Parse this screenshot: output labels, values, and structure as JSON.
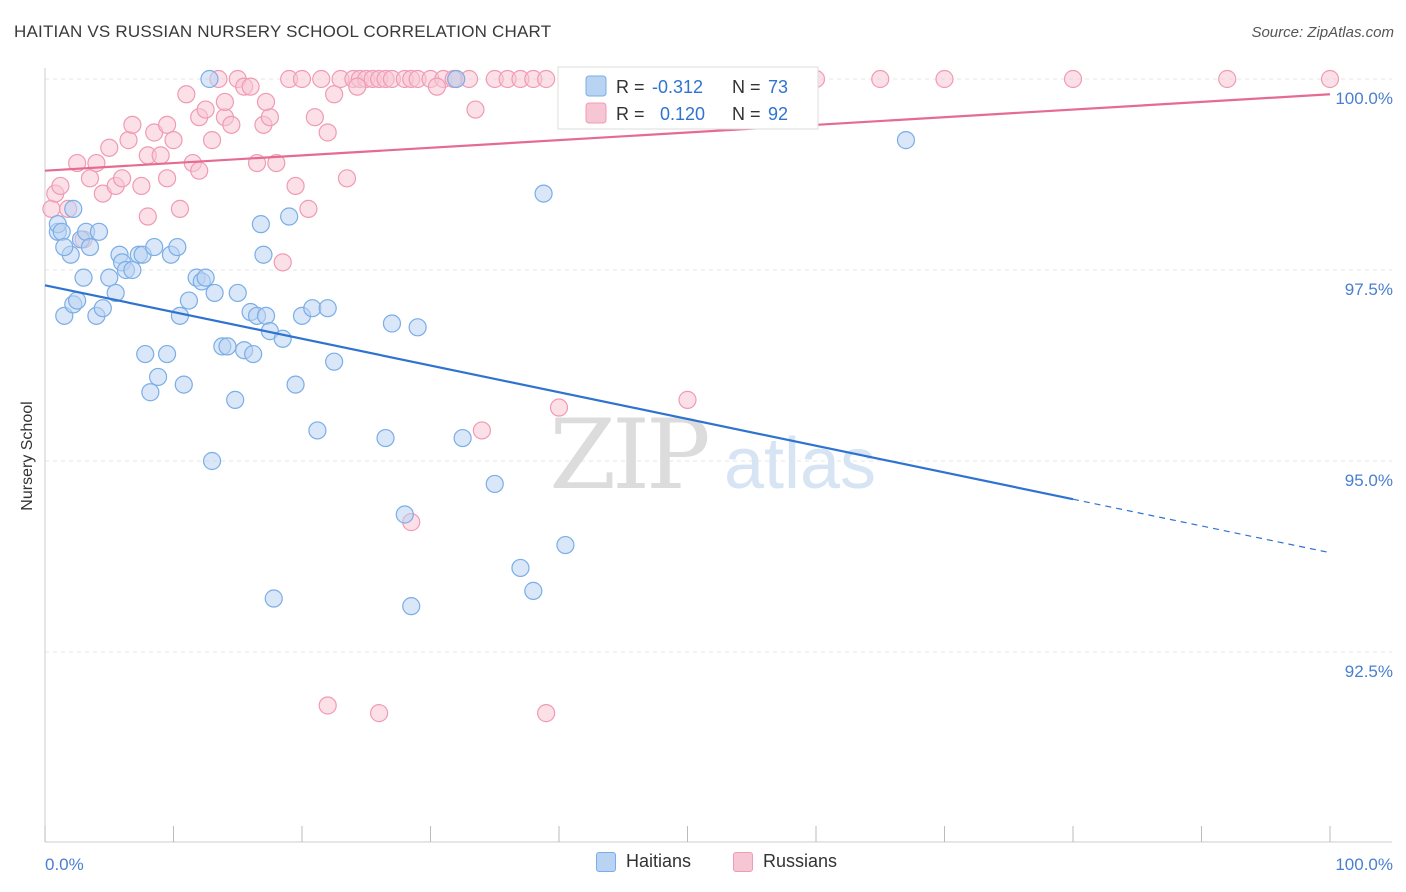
{
  "title": "HAITIAN VS RUSSIAN NURSERY SCHOOL CORRELATION CHART",
  "source": "Source: ZipAtlas.com",
  "watermark": {
    "zip": "ZIP",
    "atlas": "atlas"
  },
  "chart_data": {
    "type": "scatter",
    "ylabel": "Nursery School",
    "xlim": [
      0,
      100
    ],
    "ylim": [
      90.3,
      100.4
    ],
    "x_tick_labels": [
      "0.0%",
      "100.0%"
    ],
    "y_ticks": [
      92.5,
      95.0,
      97.5,
      100.0
    ],
    "y_tick_labels": [
      "92.5%",
      "95.0%",
      "97.5%",
      "100.0%"
    ],
    "legend": [
      {
        "r_label": "R =",
        "r_value": "-0.312",
        "n_label": "N =",
        "n_value": "73"
      },
      {
        "r_label": "R =",
        "r_value": "0.120",
        "n_label": "N =",
        "n_value": "92"
      }
    ],
    "series": [
      {
        "name": "Haitians",
        "color": "#7aaee6",
        "fill": "#b9d3f3",
        "line_color": "#2f73d0",
        "trend": {
          "x0": 0,
          "y0": 97.3,
          "x1": 80,
          "y1": 94.5,
          "dash_to_x": 100,
          "dash_to_y": 93.8
        },
        "points": [
          [
            1,
            98.0
          ],
          [
            1,
            98.1
          ],
          [
            1.3,
            98.0
          ],
          [
            1.5,
            96.9
          ],
          [
            2,
            97.7
          ],
          [
            2.2,
            97.05
          ],
          [
            2.5,
            97.1
          ],
          [
            2.8,
            97.9
          ],
          [
            3,
            97.4
          ],
          [
            3.2,
            98.0
          ],
          [
            3.5,
            97.8
          ],
          [
            4,
            96.9
          ],
          [
            4.5,
            97.0
          ],
          [
            5,
            97.4
          ],
          [
            5.5,
            97.2
          ],
          [
            5.8,
            97.7
          ],
          [
            6,
            97.6
          ],
          [
            6.3,
            97.5
          ],
          [
            6.8,
            97.5
          ],
          [
            7.3,
            97.7
          ],
          [
            7.6,
            97.7
          ],
          [
            7.8,
            96.4
          ],
          [
            8.2,
            95.9
          ],
          [
            8.5,
            97.8
          ],
          [
            8.8,
            96.1
          ],
          [
            9.5,
            96.4
          ],
          [
            9.8,
            97.7
          ],
          [
            10.3,
            97.8
          ],
          [
            10.5,
            96.9
          ],
          [
            10.8,
            96.0
          ],
          [
            11.2,
            97.1
          ],
          [
            11.8,
            97.4
          ],
          [
            12.2,
            97.35
          ],
          [
            12.5,
            97.4
          ],
          [
            13,
            95.0
          ],
          [
            13.2,
            97.2
          ],
          [
            13.8,
            96.5
          ],
          [
            14.2,
            96.5
          ],
          [
            14.8,
            95.8
          ],
          [
            15,
            97.2
          ],
          [
            15.5,
            96.45
          ],
          [
            16,
            96.95
          ],
          [
            16.2,
            96.4
          ],
          [
            16.5,
            96.9
          ],
          [
            16.8,
            98.1
          ],
          [
            17,
            97.7
          ],
          [
            17.2,
            96.9
          ],
          [
            17.5,
            96.7
          ],
          [
            17.8,
            93.2
          ],
          [
            18.5,
            96.6
          ],
          [
            19,
            98.2
          ],
          [
            19.5,
            96.0
          ],
          [
            20,
            96.9
          ],
          [
            20.8,
            97.0
          ],
          [
            21.2,
            95.4
          ],
          [
            22,
            97.0
          ],
          [
            22.5,
            96.3
          ],
          [
            26.5,
            95.3
          ],
          [
            27,
            96.8
          ],
          [
            28,
            94.3
          ],
          [
            28.5,
            93.1
          ],
          [
            29,
            96.75
          ],
          [
            32,
            100.0
          ],
          [
            32.5,
            95.3
          ],
          [
            35,
            94.7
          ],
          [
            37,
            93.6
          ],
          [
            38,
            93.3
          ],
          [
            38.8,
            98.5
          ],
          [
            40.5,
            93.9
          ],
          [
            12.8,
            100.0
          ],
          [
            67,
            99.2
          ],
          [
            1.5,
            97.8
          ],
          [
            2.2,
            98.3
          ],
          [
            4.2,
            98.0
          ]
        ]
      },
      {
        "name": "Russians",
        "color": "#f09ab3",
        "fill": "#f7c6d5",
        "line_color": "#e56b91",
        "trend": {
          "x0": 0,
          "y0": 98.8,
          "x1": 100,
          "y1": 99.8
        },
        "points": [
          [
            0.5,
            98.3
          ],
          [
            0.8,
            98.5
          ],
          [
            1.2,
            98.6
          ],
          [
            1.8,
            98.3
          ],
          [
            2.5,
            98.9
          ],
          [
            3.5,
            98.7
          ],
          [
            4,
            98.9
          ],
          [
            4.5,
            98.5
          ],
          [
            5,
            99.1
          ],
          [
            5.5,
            98.6
          ],
          [
            6,
            98.7
          ],
          [
            6.5,
            99.2
          ],
          [
            6.8,
            99.4
          ],
          [
            7.5,
            98.6
          ],
          [
            8,
            99.0
          ],
          [
            8.5,
            99.3
          ],
          [
            9,
            99.0
          ],
          [
            9.5,
            99.4
          ],
          [
            10,
            99.2
          ],
          [
            10.5,
            98.3
          ],
          [
            11,
            99.8
          ],
          [
            11.5,
            98.9
          ],
          [
            12,
            99.5
          ],
          [
            12.5,
            99.6
          ],
          [
            13,
            99.2
          ],
          [
            13.5,
            100.0
          ],
          [
            14,
            99.5
          ],
          [
            14.5,
            99.4
          ],
          [
            15,
            100.0
          ],
          [
            15.5,
            99.9
          ],
          [
            16,
            99.9
          ],
          [
            16.5,
            98.9
          ],
          [
            17,
            99.4
          ],
          [
            17.5,
            99.5
          ],
          [
            18,
            98.9
          ],
          [
            18.5,
            97.6
          ],
          [
            19,
            100.0
          ],
          [
            19.5,
            98.6
          ],
          [
            20,
            100.0
          ],
          [
            20.5,
            98.3
          ],
          [
            21,
            99.5
          ],
          [
            21.5,
            100.0
          ],
          [
            22,
            99.3
          ],
          [
            22.5,
            99.8
          ],
          [
            23,
            100.0
          ],
          [
            23.5,
            98.7
          ],
          [
            24,
            100.0
          ],
          [
            24.5,
            100.0
          ],
          [
            25,
            100.0
          ],
          [
            25.5,
            100.0
          ],
          [
            26,
            100.0
          ],
          [
            26.5,
            100.0
          ],
          [
            27,
            100.0
          ],
          [
            28,
            100.0
          ],
          [
            28.5,
            100.0
          ],
          [
            29,
            100.0
          ],
          [
            30,
            100.0
          ],
          [
            31,
            100.0
          ],
          [
            32,
            100.0
          ],
          [
            33,
            100.0
          ],
          [
            33.5,
            99.6
          ],
          [
            34,
            95.4
          ],
          [
            35,
            100.0
          ],
          [
            36,
            100.0
          ],
          [
            37,
            100.0
          ],
          [
            38,
            100.0
          ],
          [
            39,
            100.0
          ],
          [
            40,
            95.7
          ],
          [
            41,
            100.0
          ],
          [
            45,
            100.0
          ],
          [
            50,
            95.8
          ],
          [
            55,
            100.0
          ],
          [
            60,
            100.0
          ],
          [
            65,
            100.0
          ],
          [
            70,
            100.0
          ],
          [
            80,
            100.0
          ],
          [
            92,
            100.0
          ],
          [
            100,
            100.0
          ],
          [
            22,
            91.8
          ],
          [
            26,
            91.7
          ],
          [
            39,
            91.7
          ],
          [
            28.5,
            94.2
          ],
          [
            8,
            98.2
          ],
          [
            12,
            98.8
          ],
          [
            9.5,
            98.7
          ],
          [
            3,
            97.9
          ],
          [
            14,
            99.7
          ],
          [
            17.2,
            99.7
          ],
          [
            24.3,
            99.9
          ],
          [
            30.5,
            99.9
          ],
          [
            31.8,
            100.0
          ]
        ]
      }
    ]
  }
}
